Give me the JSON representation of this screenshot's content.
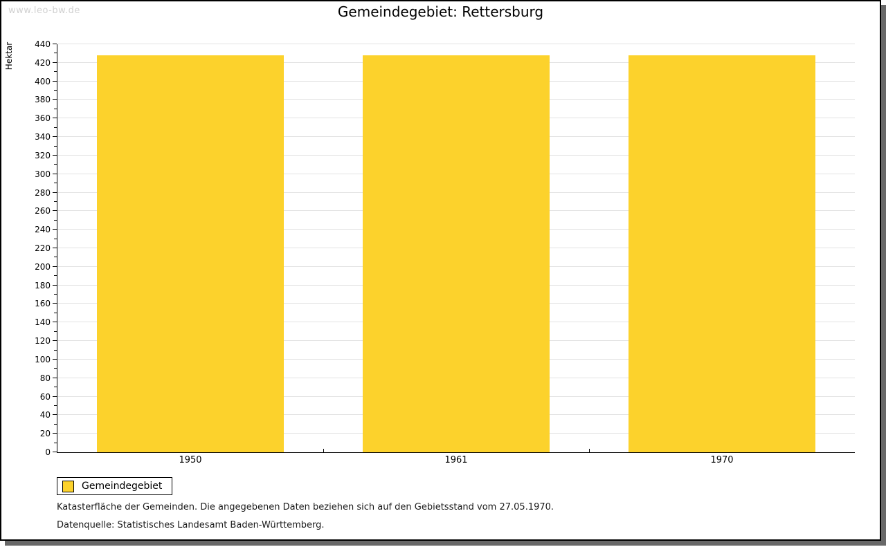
{
  "watermark": "www.leo-bw.de",
  "chart_data": {
    "type": "bar",
    "title": "Gemeindegebiet: Rettersburg",
    "categories": [
      "1950",
      "1961",
      "1970"
    ],
    "series": [
      {
        "name": "Gemeindegebiet",
        "values": [
          428,
          428,
          428
        ]
      }
    ],
    "xlabel": "",
    "ylabel": "Hektar",
    "ylim": [
      0,
      440
    ],
    "ytick_step": 20,
    "yminor_step": 10,
    "grid": true,
    "legend_position": "bottom-left",
    "bar_color": "#FCD22C"
  },
  "legend": {
    "items": [
      {
        "label": "Gemeindegebiet",
        "color": "#FCD22C"
      }
    ]
  },
  "footnotes": [
    "Katasterfläche der Gemeinden. Die angegebenen Daten beziehen sich auf den Gebietsstand vom 27.05.1970.",
    "Datenquelle: Statistisches Landesamt Baden-Württemberg."
  ],
  "colors": {
    "bar": "#FCD22C",
    "grid": "#E2E2E2",
    "axis": "#000000",
    "frame_border": "#000000",
    "frame_shadow": "#686868",
    "watermark_text": "#D0D0D0"
  }
}
